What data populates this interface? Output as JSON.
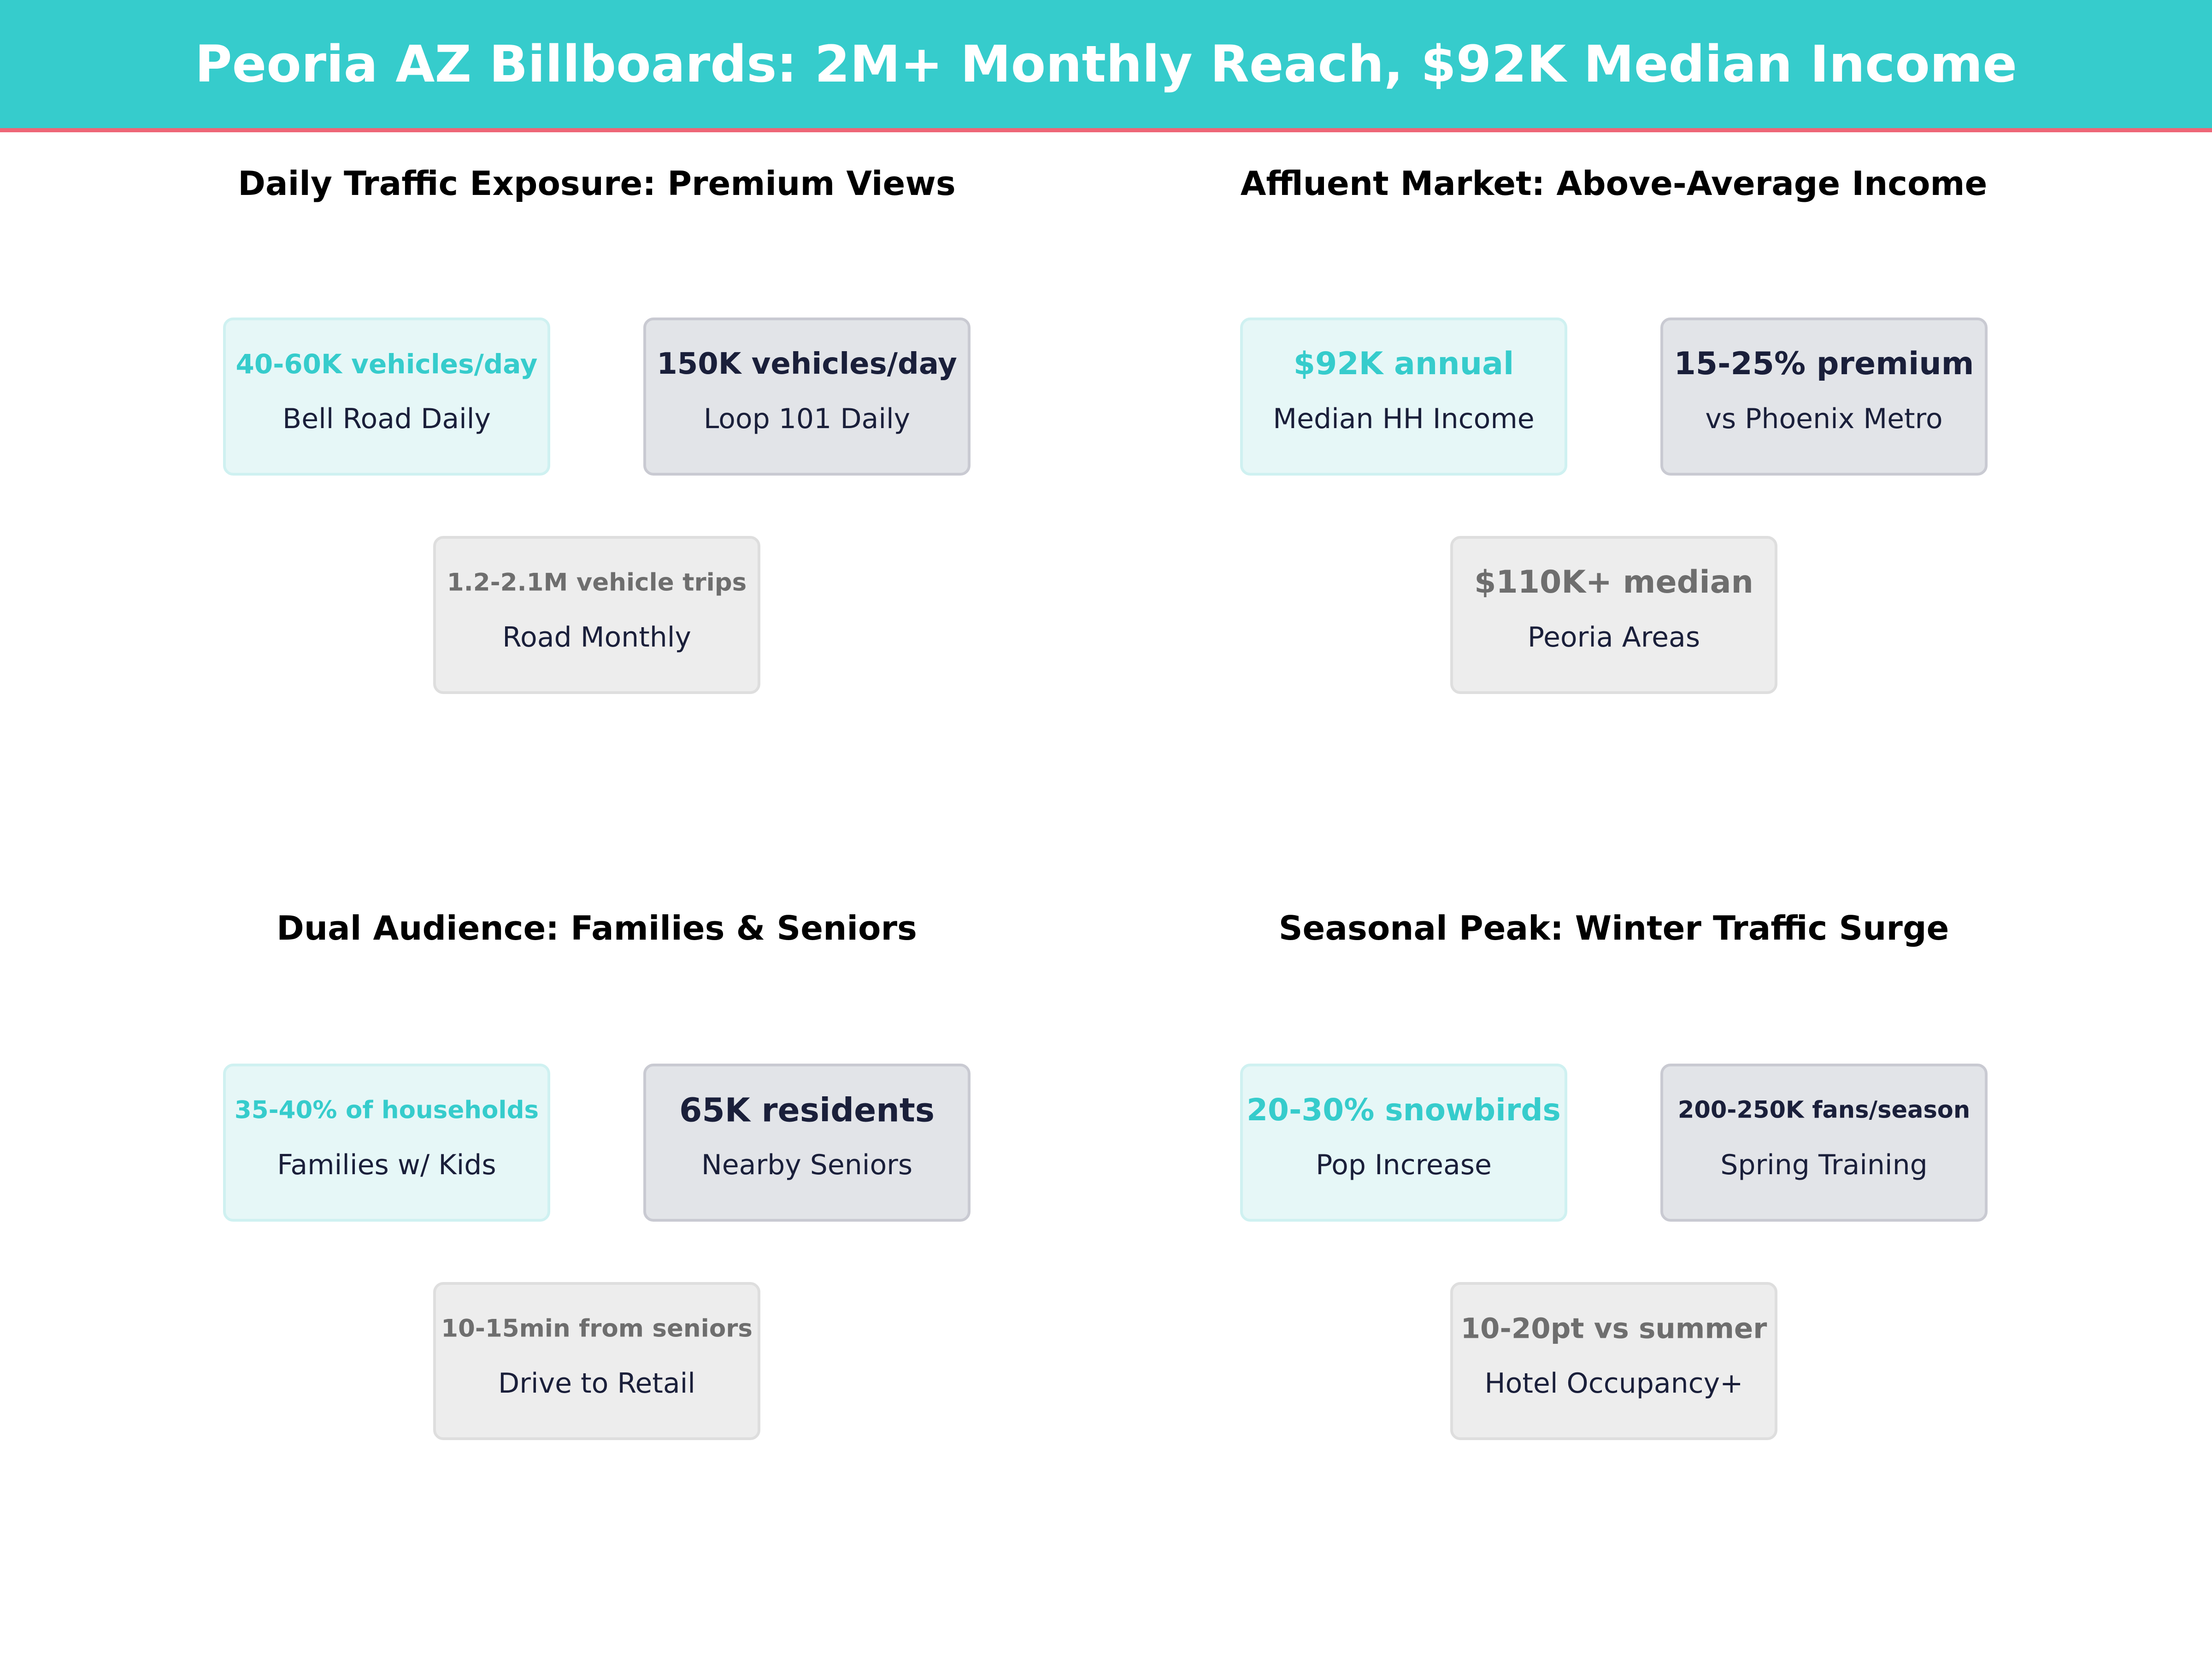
{
  "header": {
    "title": "Peoria AZ Billboards: 2M+ Monthly Reach, $92K Median Income"
  },
  "colors": {
    "accent": "#36CCCC",
    "header_rule": "#EE6677",
    "dark_text": "#1a1f3a",
    "muted_text": "#6E6E6E"
  },
  "panels": [
    {
      "title": "Daily Traffic Exposure: Premium Views",
      "cards": [
        {
          "value": "40-60K vehicles/day",
          "label": "Bell Road Daily"
        },
        {
          "value": "150K vehicles/day",
          "label": "Loop 101 Daily"
        },
        {
          "value": "1.2-2.1M vehicle trips",
          "label": "Road Monthly"
        }
      ]
    },
    {
      "title": "Affluent Market: Above-Average Income",
      "cards": [
        {
          "value": "$92K annual",
          "label": "Median HH Income"
        },
        {
          "value": "15-25% premium",
          "label": "vs Phoenix Metro"
        },
        {
          "value": "$110K+ median",
          "label": "Peoria Areas"
        }
      ]
    },
    {
      "title": "Dual Audience: Families & Seniors",
      "cards": [
        {
          "value": "35-40% of households",
          "label": "Families w/ Kids"
        },
        {
          "value": "65K residents",
          "label": "Nearby Seniors"
        },
        {
          "value": "10-15min from seniors",
          "label": "Drive to Retail"
        }
      ]
    },
    {
      "title": "Seasonal Peak: Winter Traffic Surge",
      "cards": [
        {
          "value": "20-30% snowbirds",
          "label": "Pop Increase"
        },
        {
          "value": "200-250K fans/season",
          "label": "Spring Training"
        },
        {
          "value": "10-20pt vs summer",
          "label": "Hotel Occupancy+"
        }
      ]
    }
  ]
}
